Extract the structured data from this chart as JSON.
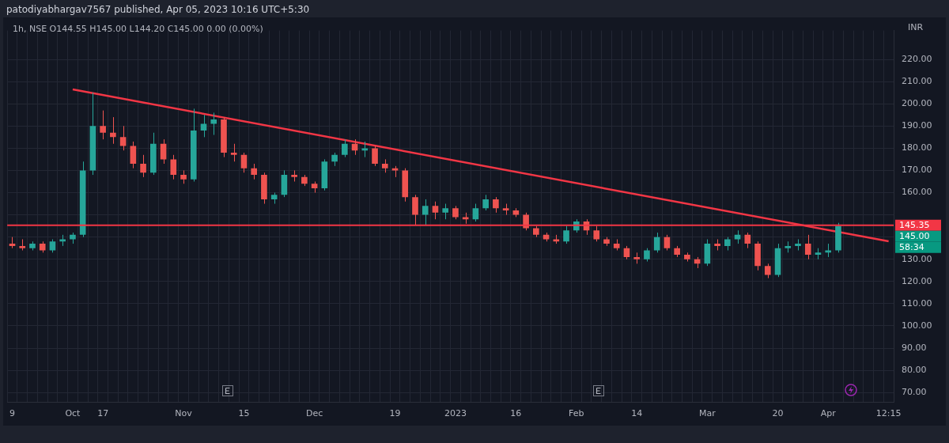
{
  "chart_data": {
    "type": "candlestick",
    "title": "patodiyabhargav7567 published, Apr 05, 2023 10:16 UTC+5:30",
    "subtitle": "1h, NSE  O144.55  H145.00  L144.20  C145.00  0.00 (0.00%)",
    "ylabel": "INR",
    "categories": [
      "9",
      null,
      null,
      null,
      null,
      null,
      "Oct",
      null,
      null,
      "17",
      null,
      null,
      null,
      null,
      null,
      null,
      null,
      "Nov",
      null,
      null,
      null,
      null,
      null,
      "15",
      null,
      null,
      null,
      null,
      null,
      null,
      "Dec",
      null,
      null,
      null,
      null,
      null,
      null,
      null,
      "19",
      null,
      null,
      null,
      null,
      null,
      "2023",
      null,
      null,
      null,
      null,
      null,
      "16",
      null,
      null,
      null,
      null,
      null,
      "Feb",
      null,
      null,
      null,
      null,
      null,
      "14",
      null,
      null,
      null,
      null,
      null,
      null,
      "Mar",
      null,
      null,
      null,
      null,
      null,
      null,
      "20",
      null,
      null,
      null,
      null,
      "Apr",
      null,
      null,
      null,
      null,
      null,
      "12:15"
    ],
    "ohlc": [
      [
        137,
        140,
        135,
        136
      ],
      [
        136,
        139,
        134,
        135
      ],
      [
        135,
        138,
        134,
        137
      ],
      [
        137,
        138,
        133,
        134
      ],
      [
        134,
        139,
        133,
        138
      ],
      [
        138,
        141,
        136,
        139
      ],
      [
        139,
        142,
        137,
        141
      ],
      [
        141,
        174,
        140,
        170
      ],
      [
        170,
        205,
        168,
        190
      ],
      [
        190,
        197,
        184,
        187
      ],
      [
        187,
        194,
        182,
        185
      ],
      [
        185,
        190,
        179,
        181
      ],
      [
        181,
        183,
        171,
        173
      ],
      [
        173,
        177,
        167,
        169
      ],
      [
        169,
        187,
        168,
        182
      ],
      [
        182,
        184,
        173,
        175
      ],
      [
        175,
        177,
        166,
        168
      ],
      [
        168,
        170,
        164,
        166
      ],
      [
        166,
        197.8,
        165,
        188
      ],
      [
        188,
        195,
        185,
        191
      ],
      [
        191,
        196,
        186,
        193
      ],
      [
        193,
        194,
        176,
        178
      ],
      [
        178,
        182,
        174,
        177
      ],
      [
        177,
        178,
        169,
        171
      ],
      [
        171,
        173,
        166,
        168
      ],
      [
        168,
        169,
        155,
        157
      ],
      [
        157,
        160,
        155,
        159
      ],
      [
        159,
        170,
        158,
        168
      ],
      [
        168,
        170,
        165,
        167
      ],
      [
        167,
        168,
        163,
        164
      ],
      [
        164,
        165,
        160,
        162
      ],
      [
        162,
        175,
        161,
        174
      ],
      [
        174,
        178,
        172,
        177
      ],
      [
        177,
        184,
        176,
        182
      ],
      [
        182,
        184,
        177,
        179
      ],
      [
        179,
        183,
        176,
        180
      ],
      [
        180,
        181,
        172,
        173
      ],
      [
        173,
        175,
        169,
        171
      ],
      [
        171,
        172,
        167,
        170
      ],
      [
        170,
        171,
        156,
        158
      ],
      [
        158,
        159,
        145.5,
        150
      ],
      [
        150,
        157,
        145.5,
        154
      ],
      [
        154,
        156,
        148,
        151
      ],
      [
        151,
        155,
        148,
        153
      ],
      [
        153,
        154,
        148,
        149
      ],
      [
        149,
        151,
        146,
        148
      ],
      [
        148,
        155,
        147,
        153
      ],
      [
        153,
        159,
        152,
        157
      ],
      [
        157,
        158,
        151,
        153
      ],
      [
        153,
        155,
        150,
        152
      ],
      [
        152,
        153,
        149,
        150
      ],
      [
        150,
        151,
        143,
        144
      ],
      [
        144,
        145,
        140,
        141
      ],
      [
        141,
        142,
        138,
        139
      ],
      [
        139,
        141,
        137,
        138
      ],
      [
        138,
        145,
        137,
        143
      ],
      [
        143,
        148,
        142,
        147
      ],
      [
        147,
        148,
        141,
        143
      ],
      [
        143,
        145,
        138,
        139
      ],
      [
        139,
        140,
        136,
        137
      ],
      [
        137,
        139,
        134,
        135
      ],
      [
        135,
        136,
        130,
        131
      ],
      [
        131,
        133,
        128,
        130
      ],
      [
        130,
        135,
        129,
        134
      ],
      [
        134,
        142,
        133,
        140
      ],
      [
        140,
        141,
        134,
        135
      ],
      [
        135,
        136,
        131,
        132
      ],
      [
        132,
        133,
        129,
        130
      ],
      [
        130,
        131,
        126,
        128
      ],
      [
        128,
        139,
        127,
        137
      ],
      [
        137,
        139,
        134,
        136
      ],
      [
        136,
        140,
        134,
        139
      ],
      [
        139,
        143,
        137,
        141
      ],
      [
        141,
        142,
        135,
        137
      ],
      [
        137,
        138,
        125,
        127
      ],
      [
        127,
        128,
        121.5,
        123
      ],
      [
        123,
        137,
        122,
        135
      ],
      [
        135,
        138,
        133,
        136
      ],
      [
        136,
        139,
        134,
        137
      ],
      [
        137,
        141,
        130,
        132
      ],
      [
        132,
        135,
        130,
        133
      ],
      [
        133,
        137,
        131,
        134
      ],
      [
        134,
        146.4,
        133,
        145
      ],
      null,
      null,
      null,
      null,
      null
    ],
    "colors": [
      "#ef5350",
      "#ef5350",
      "#26a69a",
      "#ef5350",
      "#26a69a",
      "#26a69a",
      "#26a69a",
      "#26a69a",
      "#26a69a",
      "#ef5350",
      "#ef5350",
      "#ef5350",
      "#ef5350",
      "#ef5350",
      "#26a69a",
      "#ef5350",
      "#ef5350",
      "#ef5350",
      "#26a69a",
      "#26a69a",
      "#26a69a",
      "#ef5350",
      "#ef5350",
      "#ef5350",
      "#ef5350",
      "#ef5350",
      "#26a69a",
      "#26a69a",
      "#ef5350",
      "#ef5350",
      "#ef5350",
      "#26a69a",
      "#26a69a",
      "#26a69a",
      "#ef5350",
      "#26a69a",
      "#ef5350",
      "#ef5350",
      "#ef5350",
      "#ef5350",
      "#ef5350",
      "#26a69a",
      "#ef5350",
      "#26a69a",
      "#ef5350",
      "#ef5350",
      "#26a69a",
      "#26a69a",
      "#ef5350",
      "#ef5350",
      "#ef5350",
      "#ef5350",
      "#ef5350",
      "#ef5350",
      "#ef5350",
      "#26a69a",
      "#26a69a",
      "#ef5350",
      "#ef5350",
      "#ef5350",
      "#ef5350",
      "#ef5350",
      "#ef5350",
      "#26a69a",
      "#26a69a",
      "#ef5350",
      "#ef5350",
      "#ef5350",
      "#ef5350",
      "#26a69a",
      "#ef5350",
      "#26a69a",
      "#26a69a",
      "#ef5350",
      "#ef5350",
      "#ef5350",
      "#26a69a",
      "#26a69a",
      "#26a69a",
      "#ef5350",
      "#26a69a",
      "#26a69a",
      "#26a69a",
      null,
      null,
      null,
      null,
      null
    ],
    "series": [
      {
        "type": "line",
        "color": "#f23645",
        "values": [
          null,
          null,
          null,
          null,
          null,
          null,
          206.5,
          null,
          null,
          null,
          null,
          null,
          null,
          null,
          null,
          null,
          null,
          null,
          null,
          null,
          null,
          null,
          null,
          null,
          null,
          null,
          null,
          null,
          null,
          null,
          null,
          null,
          null,
          null,
          null,
          null,
          null,
          null,
          null,
          null,
          null,
          null,
          null,
          null,
          null,
          null,
          null,
          null,
          null,
          null,
          null,
          null,
          null,
          null,
          null,
          null,
          null,
          null,
          null,
          null,
          null,
          null,
          null,
          null,
          null,
          null,
          null,
          null,
          null,
          null,
          null,
          null,
          null,
          null,
          null,
          null,
          null,
          null,
          null,
          null,
          null,
          null,
          null,
          null,
          null,
          null,
          null,
          138.1
        ]
      }
    ],
    "ref_lines": [
      {
        "axis": "y",
        "value": 145.35,
        "label": "145.35",
        "color": "#f23645"
      }
    ],
    "annotations": [
      "145.00",
      "58:34"
    ],
    "ylim": [
      65.5,
      233
    ],
    "yticks": [
      {
        "value": 70,
        "label": "70.00"
      },
      {
        "value": 80,
        "label": "80.00"
      },
      {
        "value": 90,
        "label": "90.00"
      },
      {
        "value": 100,
        "label": "100.00"
      },
      {
        "value": 110,
        "label": "110.00"
      },
      {
        "value": 120,
        "label": "120.00"
      },
      {
        "value": 130,
        "label": "130.00"
      },
      {
        "value": 140,
        "label": null
      },
      {
        "value": 150,
        "label": null
      },
      {
        "value": 160,
        "label": "160.00"
      },
      {
        "value": 170,
        "label": "170.00"
      },
      {
        "value": 180,
        "label": "180.00"
      },
      {
        "value": 190,
        "label": "190.00"
      },
      {
        "value": 200,
        "label": "200.00"
      },
      {
        "value": 210,
        "label": "210.00"
      },
      {
        "value": 220,
        "label": "220.00"
      }
    ],
    "grid": true
  }
}
